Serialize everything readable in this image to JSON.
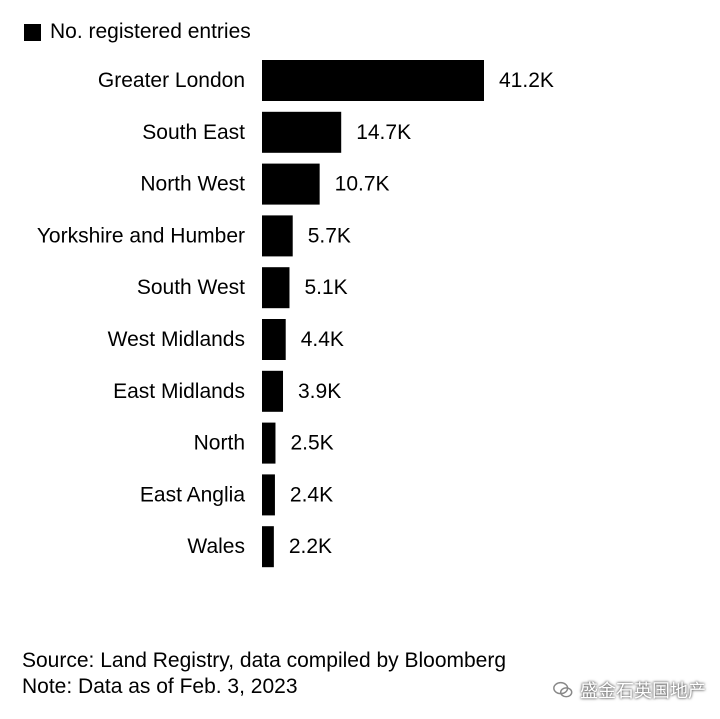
{
  "legend": {
    "label": "No. registered entries",
    "color": "#000000"
  },
  "chart_data": {
    "type": "bar",
    "orientation": "horizontal",
    "categories": [
      "Greater London",
      "South East",
      "North West",
      "Yorkshire and Humber",
      "South West",
      "West Midlands",
      "East Midlands",
      "North",
      "East Anglia",
      "Wales"
    ],
    "values": [
      41200,
      14700,
      10700,
      5700,
      5100,
      4400,
      3900,
      2500,
      2400,
      2200
    ],
    "value_labels": [
      "41.2K",
      "14.7K",
      "10.7K",
      "5.7K",
      "5.1K",
      "4.4K",
      "3.9K",
      "2.5K",
      "2.4K",
      "2.2K"
    ],
    "series": [
      {
        "name": "No. registered entries",
        "color": "#000000"
      }
    ],
    "xlim": [
      0,
      41200
    ],
    "grid": false,
    "legend_position": "top-left"
  },
  "footer": {
    "source": "Source: Land Registry, data compiled by Bloomberg",
    "note": "Note: Data as of Feb. 3, 2023"
  },
  "watermark": {
    "text": "盛金石英国地产",
    "icon": "wechat-icon"
  }
}
